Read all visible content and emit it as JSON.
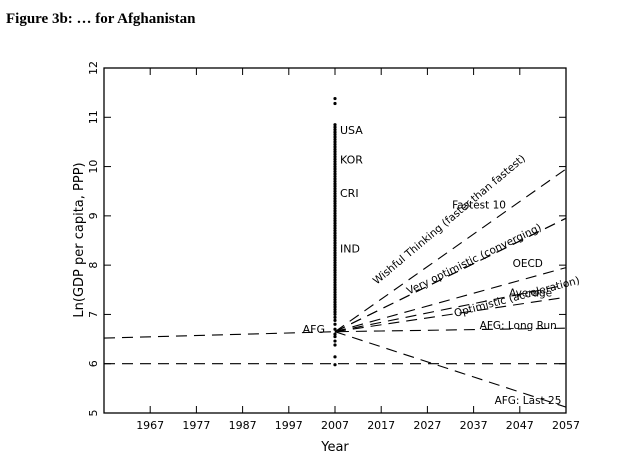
{
  "figure_title": "Figure 3b:  … for Afghanistan",
  "chart_data": {
    "type": "scatter",
    "xlabel": "Year",
    "ylabel": "Ln(GDP per capita, PPP)",
    "xlim": [
      1957,
      2057
    ],
    "ylim": [
      5,
      12
    ],
    "x_ticks": [
      1967,
      1977,
      1987,
      1997,
      2007,
      2017,
      2027,
      2037,
      2047,
      2057
    ],
    "y_ticks": [
      5,
      6,
      7,
      8,
      9,
      10,
      11,
      12
    ],
    "grid": false,
    "scatter_x": 2007,
    "scatter_points": [
      5.98,
      6.14,
      6.38,
      6.46,
      6.55,
      6.6,
      6.7,
      6.8,
      6.88,
      6.94,
      7.0,
      7.05,
      7.1,
      7.15,
      7.2,
      7.25,
      7.3,
      7.35,
      7.4,
      7.45,
      7.5,
      7.55,
      7.6,
      7.65,
      7.7,
      7.75,
      7.8,
      7.85,
      7.9,
      7.95,
      8.0,
      8.05,
      8.1,
      8.15,
      8.2,
      8.25,
      8.3,
      8.35,
      8.4,
      8.45,
      8.5,
      8.55,
      8.6,
      8.65,
      8.7,
      8.75,
      8.8,
      8.85,
      8.9,
      8.95,
      9.0,
      9.05,
      9.1,
      9.15,
      9.2,
      9.25,
      9.3,
      9.35,
      9.4,
      9.45,
      9.5,
      9.55,
      9.6,
      9.65,
      9.7,
      9.75,
      9.8,
      9.85,
      9.9,
      9.95,
      10.0,
      10.05,
      10.1,
      10.15,
      10.2,
      10.25,
      10.3,
      10.35,
      10.4,
      10.45,
      10.5,
      10.55,
      10.6,
      10.65,
      10.7,
      10.75,
      10.8,
      10.85,
      11.28,
      11.38
    ],
    "point_labels": [
      {
        "text": "USA",
        "x": 2007,
        "y": 10.74
      },
      {
        "text": "KOR",
        "x": 2007,
        "y": 10.14
      },
      {
        "text": "CRI",
        "x": 2007,
        "y": 9.46
      },
      {
        "text": "IND",
        "x": 2007,
        "y": 8.34
      },
      {
        "text": "AFG",
        "x": 2007,
        "y": 6.7
      }
    ],
    "series": [
      {
        "name": "AFG: Long Run",
        "x": [
          1957,
          2007,
          2057
        ],
        "y": [
          6.52,
          6.65,
          6.72
        ],
        "label_at": [
          2055,
          6.7
        ]
      },
      {
        "name": "",
        "x": [
          1957,
          2057
        ],
        "y": [
          6.0,
          6.0
        ]
      },
      {
        "name": "AFG: Last 25",
        "x": [
          2007,
          2057
        ],
        "y": [
          6.65,
          5.12
        ],
        "label_at": [
          2056,
          5.18
        ]
      },
      {
        "name": "Average",
        "x": [
          2007,
          2057
        ],
        "y": [
          6.65,
          7.35
        ],
        "label_at": [
          2054,
          7.36
        ]
      },
      {
        "name": "Optimistic (acceleration)",
        "x": [
          2007,
          2057
        ],
        "y": [
          6.65,
          7.6
        ],
        "label_at": [
          2033,
          6.95
        ],
        "label_angle": -15
      },
      {
        "name": "OECD",
        "x": [
          2007,
          2057
        ],
        "y": [
          6.65,
          7.95
        ],
        "label_at": [
          2052,
          7.96
        ]
      },
      {
        "name": "Very optimistic (converging)",
        "x": [
          2007,
          2057
        ],
        "y": [
          6.65,
          8.95
        ],
        "label_at": [
          2023,
          7.4
        ],
        "label_angle": -26
      },
      {
        "name": "Fastest 10",
        "x": [
          2007,
          2057
        ],
        "y": [
          6.65,
          8.95
        ],
        "label_at": [
          2044,
          9.15
        ]
      },
      {
        "name": "Wishful Thinking (faster than fastest)",
        "x": [
          2007,
          2057
        ],
        "y": [
          6.65,
          9.95
        ],
        "label_at": [
          2016,
          7.6
        ],
        "label_angle": -40
      }
    ]
  }
}
